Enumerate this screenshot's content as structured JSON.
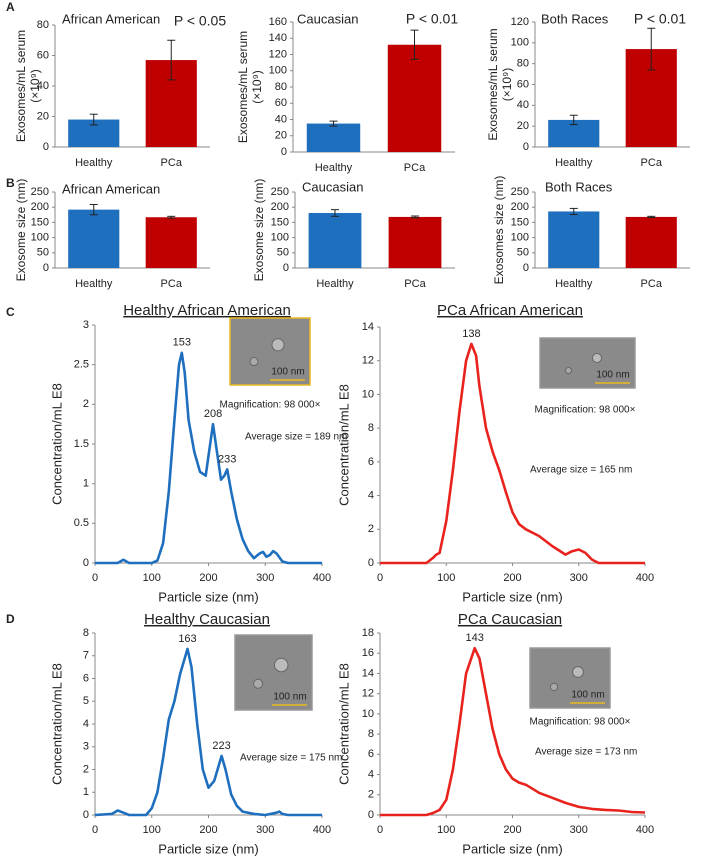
{
  "panel_labels": [
    "A",
    "B",
    "C",
    "D"
  ],
  "chart_data": [
    {
      "type": "bar",
      "title": "African American",
      "ylabel": [
        "Exosomes/mL serum",
        "(×10⁹)"
      ],
      "annotation": "P < 0.05",
      "categories": [
        "Healthy",
        "PCa"
      ],
      "values": [
        18,
        57
      ],
      "errors": [
        3.5,
        13
      ],
      "colors": [
        "#1f6fbf",
        "#c00000"
      ],
      "ylim": [
        0,
        80
      ],
      "yticks": [
        0,
        20,
        40,
        60,
        80
      ]
    },
    {
      "type": "bar",
      "title": "Caucasian",
      "ylabel": [
        "Exosomes/mL serum",
        "(×10⁹)"
      ],
      "annotation": "P < 0.01",
      "categories": [
        "Healthy",
        "PCa"
      ],
      "values": [
        35,
        132
      ],
      "errors": [
        3,
        18
      ],
      "colors": [
        "#1f6fbf",
        "#c00000"
      ],
      "ylim": [
        0,
        160
      ],
      "yticks": [
        0,
        20,
        40,
        60,
        80,
        100,
        120,
        140,
        160
      ]
    },
    {
      "type": "bar",
      "title": "Both Races",
      "ylabel": [
        "Exosomes/mL serum",
        "(×10⁹)"
      ],
      "annotation": "P < 0.01",
      "categories": [
        "Healthy",
        "PCa"
      ],
      "values": [
        26,
        94
      ],
      "errors": [
        4.5,
        20
      ],
      "colors": [
        "#1f6fbf",
        "#c00000"
      ],
      "ylim": [
        0,
        120
      ],
      "yticks": [
        0,
        20,
        40,
        60,
        80,
        100,
        120
      ]
    },
    {
      "type": "bar",
      "title": "African American",
      "ylabel": [
        "Exosome size (nm)"
      ],
      "categories": [
        "Healthy",
        "PCa"
      ],
      "values": [
        192,
        167
      ],
      "errors": [
        17,
        3
      ],
      "colors": [
        "#1f6fbf",
        "#c00000"
      ],
      "ylim": [
        0,
        250
      ],
      "yticks": [
        0,
        50,
        100,
        150,
        200,
        250
      ]
    },
    {
      "type": "bar",
      "title": "Caucasian",
      "ylabel": [
        "Exosome size (nm)"
      ],
      "categories": [
        "Healthy",
        "PCa"
      ],
      "values": [
        181,
        168
      ],
      "errors": [
        11,
        3
      ],
      "colors": [
        "#1f6fbf",
        "#c00000"
      ],
      "ylim": [
        0,
        250
      ],
      "yticks": [
        0,
        50,
        100,
        150,
        200,
        250
      ]
    },
    {
      "type": "bar",
      "title": "Both Races",
      "ylabel": [
        "Exosomes size (nm)"
      ],
      "categories": [
        "Healthy",
        "PCa"
      ],
      "values": [
        186,
        168
      ],
      "errors": [
        10,
        2
      ],
      "colors": [
        "#1f6fbf",
        "#c00000"
      ],
      "ylim": [
        0,
        250
      ],
      "yticks": [
        0,
        50,
        100,
        150,
        200,
        250
      ]
    },
    {
      "type": "line",
      "title": "Healthy African American",
      "xlabel": "Particle size (nm)",
      "ylabel": "Concentration/mL E8",
      "color": "#1f6fbf",
      "x": [
        0,
        40,
        50,
        60,
        100,
        110,
        120,
        130,
        140,
        148,
        153,
        158,
        165,
        175,
        185,
        195,
        202,
        208,
        214,
        222,
        228,
        233,
        240,
        250,
        260,
        270,
        280,
        290,
        296,
        302,
        308,
        314,
        320,
        330,
        340,
        400
      ],
      "values": [
        0,
        0,
        0.04,
        0,
        0,
        0.03,
        0.25,
        0.9,
        1.8,
        2.5,
        2.65,
        2.4,
        1.8,
        1.4,
        1.15,
        1.1,
        1.45,
        1.75,
        1.45,
        1.05,
        1.1,
        1.18,
        0.9,
        0.55,
        0.3,
        0.15,
        0.06,
        0.12,
        0.14,
        0.08,
        0.1,
        0.15,
        0.12,
        0.02,
        0,
        0
      ],
      "xlim": [
        0,
        400
      ],
      "xticks": [
        0,
        100,
        200,
        300,
        400
      ],
      "ylim": [
        0,
        3
      ],
      "yticks": [
        0,
        0.5,
        1,
        1.5,
        2,
        2.5,
        3
      ],
      "peaks": [
        153,
        208,
        233
      ],
      "average_label": "Average size = 189 nm",
      "magnification_label": "Magnification: 98 000×",
      "scale_bar_label": "100 nm"
    },
    {
      "type": "line",
      "title": "PCa African American",
      "xlabel": "Particle size (nm)",
      "ylabel": "Concentration/mL E8",
      "color": "#e8231e",
      "x": [
        0,
        70,
        80,
        85,
        90,
        100,
        110,
        120,
        130,
        138,
        145,
        150,
        160,
        170,
        180,
        190,
        200,
        210,
        220,
        240,
        260,
        280,
        290,
        300,
        310,
        320,
        330,
        400
      ],
      "values": [
        0,
        0,
        0.3,
        0.5,
        0.6,
        2.5,
        5.5,
        9,
        12,
        13,
        12.3,
        10.5,
        8,
        6.6,
        5.5,
        4.2,
        3,
        2.3,
        2,
        1.6,
        1,
        0.5,
        0.7,
        0.8,
        0.6,
        0.2,
        0,
        0
      ],
      "xlim": [
        0,
        400
      ],
      "xticks": [
        0,
        100,
        200,
        300,
        400
      ],
      "ylim": [
        0,
        14
      ],
      "yticks": [
        0,
        2,
        4,
        6,
        8,
        10,
        12,
        14
      ],
      "peaks": [
        138
      ],
      "average_label": "Average size = 165 nm",
      "magnification_label": "Magnification: 98 000×",
      "scale_bar_label": "100 nm"
    },
    {
      "type": "line",
      "title": "Healthy Caucasian",
      "xlabel": "Particle size (nm)",
      "ylabel": "Concentration/mL E8",
      "color": "#1f6fbf",
      "x": [
        0,
        30,
        40,
        50,
        60,
        90,
        100,
        110,
        120,
        130,
        140,
        150,
        163,
        170,
        180,
        190,
        200,
        210,
        223,
        230,
        240,
        250,
        260,
        280,
        300,
        320,
        325,
        330,
        340,
        400
      ],
      "values": [
        0,
        0.05,
        0.2,
        0.1,
        0,
        0,
        0.3,
        1,
        2.5,
        4.2,
        5,
        6.2,
        7.3,
        6.5,
        4,
        2,
        1.2,
        1.5,
        2.6,
        2,
        0.9,
        0.4,
        0.15,
        0.05,
        0,
        0.1,
        0.15,
        0.05,
        0,
        0
      ],
      "xlim": [
        0,
        400
      ],
      "xticks": [
        0,
        100,
        200,
        300,
        400
      ],
      "ylim": [
        0,
        8
      ],
      "yticks": [
        0,
        1,
        2,
        3,
        4,
        5,
        6,
        7,
        8
      ],
      "peaks": [
        163,
        223
      ],
      "average_label": "Average size = 175 nm",
      "scale_bar_label": "100 nm"
    },
    {
      "type": "line",
      "title": "PCa Caucasian",
      "xlabel": "Particle size (nm)",
      "ylabel": "Concentration/mL E8",
      "color": "#e8231e",
      "x": [
        0,
        70,
        80,
        90,
        100,
        110,
        120,
        130,
        143,
        150,
        160,
        170,
        180,
        190,
        200,
        210,
        220,
        230,
        240,
        260,
        280,
        300,
        320,
        340,
        360,
        380,
        400
      ],
      "values": [
        0,
        0,
        0.2,
        0.5,
        1.5,
        4.5,
        9,
        14,
        16.5,
        15.5,
        12,
        8.5,
        6,
        4.5,
        3.6,
        3.2,
        3,
        2.6,
        2.2,
        1.7,
        1.2,
        0.8,
        0.6,
        0.5,
        0.45,
        0.3,
        0.25
      ],
      "xlim": [
        0,
        400
      ],
      "xticks": [
        0,
        100,
        200,
        300,
        400
      ],
      "ylim": [
        0,
        18
      ],
      "yticks": [
        0,
        2,
        4,
        6,
        8,
        10,
        12,
        14,
        16,
        18
      ],
      "peaks": [
        143
      ],
      "average_label": "Average size = 173 nm",
      "magnification_label": "Magnification: 98 000×",
      "scale_bar_label": "100 nm"
    }
  ]
}
